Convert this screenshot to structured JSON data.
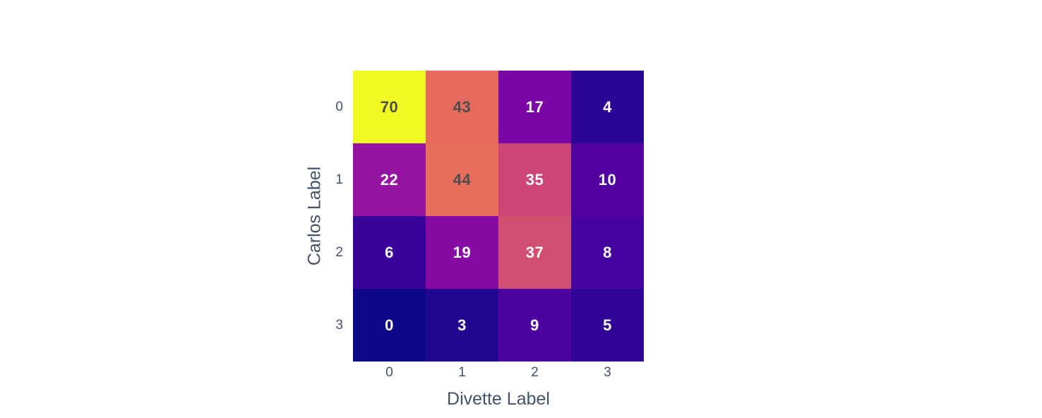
{
  "chart_data": {
    "type": "heatmap",
    "title": "",
    "xlabel": "Divette Label",
    "ylabel": "Carlos Label",
    "x_ticks": [
      "0",
      "1",
      "2",
      "3"
    ],
    "y_ticks": [
      "0",
      "1",
      "2",
      "3"
    ],
    "zmin": 0,
    "zmax": 70,
    "colorscale": "plasma",
    "legend": "none",
    "grid": false,
    "series": [
      {
        "name": "0",
        "values": [
          70,
          43,
          17,
          4
        ]
      },
      {
        "name": "1",
        "values": [
          22,
          44,
          35,
          10
        ]
      },
      {
        "name": "2",
        "values": [
          6,
          19,
          37,
          8
        ]
      },
      {
        "name": "3",
        "values": [
          0,
          3,
          9,
          5
        ]
      }
    ],
    "cell_colors": [
      [
        "#f0f921",
        "#e56a5d",
        "#7b06a6",
        "#2b0593"
      ],
      [
        "#9613a1",
        "#e76e5b",
        "#cc4778",
        "#5302a2"
      ],
      [
        "#390499",
        "#850ba4",
        "#d14f71",
        "#47039f"
      ],
      [
        "#0d0887",
        "#230690",
        "#4d03a0",
        "#310596"
      ]
    ],
    "cell_text_colors": [
      [
        "#4d4d4d",
        "#4d4d4d",
        "#ffffff",
        "#ffffff"
      ],
      [
        "#ffffff",
        "#4d4d4d",
        "#ffffff",
        "#ffffff"
      ],
      [
        "#ffffff",
        "#ffffff",
        "#ffffff",
        "#ffffff"
      ],
      [
        "#ffffff",
        "#ffffff",
        "#ffffff",
        "#ffffff"
      ]
    ]
  },
  "colors": {
    "background": "#ffffff",
    "axis_text": "#44536b"
  }
}
